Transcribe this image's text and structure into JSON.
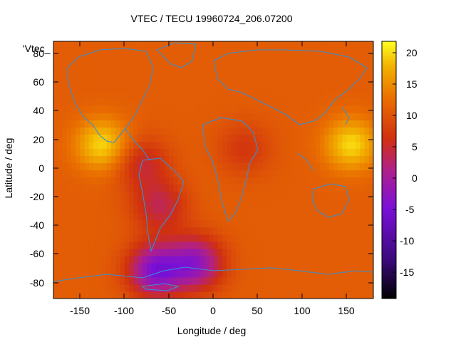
{
  "chart_data": {
    "type": "heatmap",
    "title": "VTEC / TECU 19960724_206.07200",
    "xlabel": "Longitude / deg",
    "ylabel": "Latitude / deg",
    "xlim": [
      -180,
      180
    ],
    "ylim": [
      -90,
      90
    ],
    "x_ticks": [
      -150,
      -100,
      -50,
      0,
      50,
      100,
      150
    ],
    "y_ticks": [
      -80,
      -60,
      -40,
      -20,
      0,
      20,
      40,
      60,
      80
    ],
    "colorbar": {
      "range": [
        -19,
        22
      ],
      "ticks": [
        20,
        15,
        10,
        5,
        0,
        -5,
        -10,
        -15
      ]
    },
    "legend_label": "'Vtec_",
    "features": [
      {
        "kind": "max",
        "lon": -125,
        "lat": 18,
        "value": 20
      },
      {
        "kind": "max",
        "lon": 155,
        "lat": 18,
        "value": 20
      },
      {
        "kind": "min",
        "lon": -65,
        "lat": -70,
        "value": -4
      },
      {
        "kind": "min",
        "lon": -20,
        "lat": -65,
        "value": -2
      },
      {
        "kind": "low",
        "lon": -60,
        "lat": -25,
        "value": 4
      },
      {
        "kind": "low",
        "lon": -80,
        "lat": 5,
        "value": 5
      },
      {
        "kind": "low",
        "lon": 35,
        "lat": 15,
        "value": 7
      }
    ],
    "background_value": 11,
    "grid": false
  }
}
